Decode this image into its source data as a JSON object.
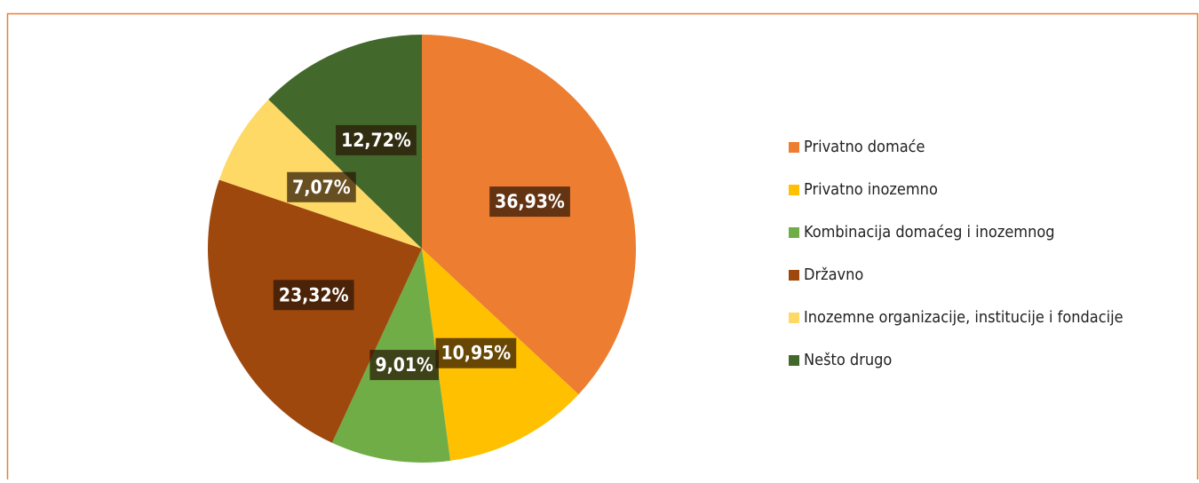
{
  "chart_data": {
    "type": "pie",
    "categories": [
      "Privatno domaće",
      "Privatno inozemno",
      "Kombinacija domaćeg i inozemnog",
      "Državno",
      "Inozemne organizacije, institucije i fondacije",
      "Nešto drugo"
    ],
    "values": [
      36.93,
      10.95,
      9.01,
      23.32,
      7.07,
      12.72
    ],
    "value_labels": [
      "36,93%",
      "10,95%",
      "9,01%",
      "23,32%",
      "7,07%",
      "12,72%"
    ],
    "colors": [
      "#ED7D31",
      "#FFC000",
      "#70AD47",
      "#9E480E",
      "#FFD966",
      "#43682B"
    ],
    "legend": "right"
  }
}
